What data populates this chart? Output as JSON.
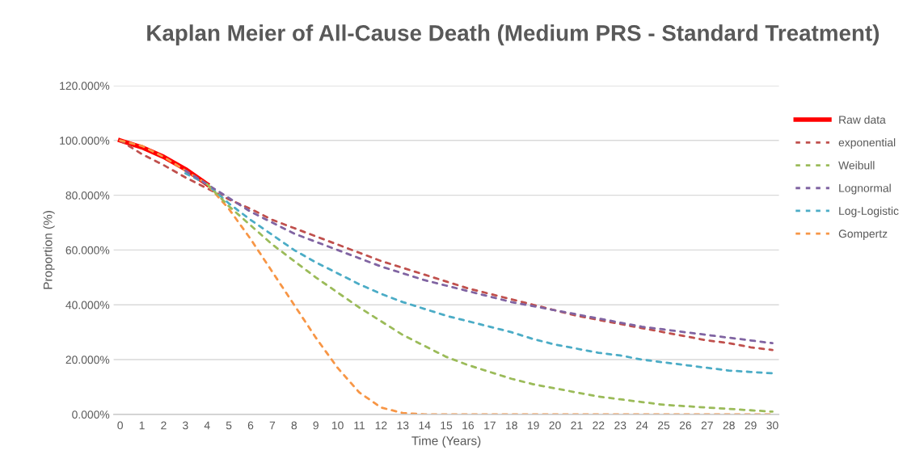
{
  "chart_data": {
    "type": "line",
    "title": "Kaplan Meier of All-Cause Death (Medium PRS - Standard Treatment)",
    "xlabel": "Time (Years)",
    "ylabel": "Proportion (%)",
    "categories": [
      "0",
      "1",
      "2",
      "3",
      "4",
      "5",
      "6",
      "7",
      "8",
      "9",
      "10",
      "11",
      "12",
      "13",
      "14",
      "15",
      "16",
      "17",
      "18",
      "19",
      "20",
      "21",
      "22",
      "23",
      "24",
      "25",
      "26",
      "27",
      "28",
      "29",
      "30"
    ],
    "ylim": [
      0,
      120
    ],
    "yticks": [
      {
        "value": 0,
        "label": "0.000%"
      },
      {
        "value": 20,
        "label": "20.000%"
      },
      {
        "value": 40,
        "label": "40.000%"
      },
      {
        "value": 60,
        "label": "60.000%"
      },
      {
        "value": 80,
        "label": "80.000%"
      },
      {
        "value": 100,
        "label": "100.000%"
      },
      {
        "value": 120,
        "label": "120.000%"
      }
    ],
    "grid": "y",
    "legend": "right",
    "series": [
      {
        "name": "Raw data",
        "color": "#ff0000",
        "line_style": "solid",
        "values": [
          100,
          97.5,
          94,
          89.5,
          84,
          null,
          null,
          null,
          null,
          null,
          null,
          null,
          null,
          null,
          null,
          null,
          null,
          null,
          null,
          null,
          null,
          null,
          null,
          null,
          null,
          null,
          null,
          null,
          null,
          null,
          null
        ]
      },
      {
        "name": "exponential",
        "color": "#c0504d",
        "line_style": "dashed",
        "values": [
          100,
          95,
          91,
          86.5,
          82.5,
          78.5,
          75,
          71,
          68,
          65,
          62,
          59,
          56,
          53.5,
          51,
          48.5,
          46,
          44,
          42,
          40,
          38,
          36,
          34.5,
          33,
          31.5,
          30,
          28.5,
          27,
          26,
          24.5,
          23.5
        ]
      },
      {
        "name": "Weibull",
        "color": "#9bbb59",
        "line_style": "dashed",
        "values": [
          null,
          null,
          null,
          null,
          84,
          76,
          69,
          62,
          56,
          50,
          44.5,
          39,
          34,
          29,
          25,
          21,
          18,
          15.5,
          13,
          11,
          9.5,
          8,
          6.5,
          5.5,
          4.5,
          3.5,
          3,
          2.5,
          2,
          1.5,
          1
        ]
      },
      {
        "name": "Lognormal",
        "color": "#8064a2",
        "line_style": "dashed",
        "values": [
          null,
          null,
          null,
          89,
          84,
          79,
          74,
          70,
          66,
          63,
          60,
          57,
          54,
          51.5,
          49,
          47,
          45,
          43,
          41,
          39.5,
          38,
          36.5,
          35,
          33.5,
          32,
          31,
          30,
          29,
          28,
          27,
          26
        ]
      },
      {
        "name": "Log-Logistic",
        "color": "#4bacc6",
        "line_style": "dashed",
        "values": [
          null,
          null,
          null,
          88,
          84,
          77,
          71,
          65.5,
          60,
          55.5,
          51.5,
          47.5,
          44,
          41,
          38.5,
          36,
          34,
          32,
          30,
          27.5,
          25.5,
          24,
          22.5,
          21.5,
          20,
          19,
          18,
          17,
          16,
          15.5,
          15
        ]
      },
      {
        "name": "Gompertz",
        "color": "#f79646",
        "line_style": "dashed",
        "values": [
          100,
          98,
          94,
          89,
          84,
          75,
          64,
          52,
          40,
          28,
          17,
          8,
          2.5,
          0.5,
          0,
          0,
          0,
          0,
          0,
          0,
          0,
          0,
          0,
          0,
          0,
          0,
          0,
          0,
          0,
          0,
          0
        ]
      }
    ]
  }
}
